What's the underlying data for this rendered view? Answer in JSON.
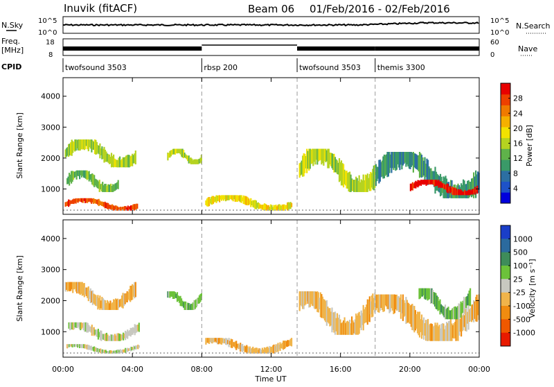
{
  "header": {
    "station": "Inuvik (fitACF)",
    "beam": "Beam 06",
    "date_range": "01/Feb/2016 - 02/Feb/2016"
  },
  "strip_panels": {
    "nsky": {
      "label": "N.Sky",
      "left_ticks": [
        "10^5",
        "10^0"
      ],
      "right_ticks": [
        "10^5",
        "10^0"
      ],
      "right_label": "N.Search"
    },
    "freq": {
      "label_line1": "Freq.",
      "label_line2": "[MHz]",
      "left_ticks": [
        "18",
        "8"
      ],
      "right_ticks": [
        "60",
        "0"
      ],
      "right_label": "Nave"
    },
    "cpid": {
      "label": "CPID",
      "segments": [
        {
          "name": "twofsound 3503",
          "start_h": 0.0,
          "end_h": 8.0
        },
        {
          "name": "rbsp 200",
          "start_h": 8.0,
          "end_h": 13.5
        },
        {
          "name": "twofsound 3503",
          "start_h": 13.5,
          "end_h": 18.0
        },
        {
          "name": "themis 3300",
          "start_h": 18.0,
          "end_h": 24.0
        }
      ]
    }
  },
  "time_axis": {
    "title": "Time UT",
    "ticks": [
      "00:00",
      "04:00",
      "08:00",
      "12:00",
      "16:00",
      "20:00",
      "00:00"
    ]
  },
  "chart_data": [
    {
      "type": "heatmap",
      "title": "Power",
      "ylabel": "Slant Range [km]",
      "xlabel": "Time UT",
      "xlim_hours": [
        0,
        24
      ],
      "ylim_km": [
        180,
        4600
      ],
      "y_ticks": [
        1000,
        2000,
        3000,
        4000
      ],
      "colorbar": {
        "label": "Power [dB]",
        "tick_labels": [
          "4",
          "8",
          "12",
          "16",
          "20",
          "24",
          "28"
        ],
        "colors": [
          "#0000dc",
          "#1e52c8",
          "#2c6fa2",
          "#3a9a68",
          "#5fb24a",
          "#b5d320",
          "#f2e200",
          "#f5b000",
          "#f07a00",
          "#ee4000",
          "#e80000"
        ]
      },
      "echo_regions": [
        {
          "t_start_h": 0.1,
          "t_end_h": 4.3,
          "range_km": [
            300,
            700
          ],
          "power_db": 28
        },
        {
          "t_start_h": 0.2,
          "t_end_h": 3.2,
          "range_km": [
            900,
            1600
          ],
          "power_db": 12
        },
        {
          "t_start_h": 0.1,
          "t_end_h": 4.2,
          "range_km": [
            1700,
            2600
          ],
          "power_db": 16
        },
        {
          "t_start_h": 6.0,
          "t_end_h": 8.0,
          "range_km": [
            1800,
            2300
          ],
          "power_db": 14
        },
        {
          "t_start_h": 8.2,
          "t_end_h": 13.2,
          "range_km": [
            300,
            800
          ],
          "power_db": 18
        },
        {
          "t_start_h": 13.6,
          "t_end_h": 18.0,
          "range_km": [
            900,
            2300
          ],
          "power_db": 14
        },
        {
          "t_start_h": 18.0,
          "t_end_h": 24.0,
          "range_km": [
            700,
            2200
          ],
          "power_db": 10
        },
        {
          "t_start_h": 20.0,
          "t_end_h": 23.9,
          "range_km": [
            800,
            1300
          ],
          "power_db": 30
        }
      ]
    },
    {
      "type": "heatmap",
      "title": "Velocity",
      "ylabel": "Slant Range [km]",
      "xlabel": "Time UT",
      "xlim_hours": [
        0,
        24
      ],
      "ylim_km": [
        180,
        4600
      ],
      "y_ticks": [
        1000,
        2000,
        3000,
        4000
      ],
      "colorbar": {
        "label": "Velocity [m s⁻¹]",
        "tick_labels": [
          "1000",
          "500",
          "100",
          "25",
          "-25",
          "-100",
          "-500",
          "-1000"
        ],
        "colors": [
          "#1a3ec8",
          "#2b6a9e",
          "#3e8c5a",
          "#6cc23a",
          "#c8c8c0",
          "#f0b44a",
          "#f08c10",
          "#f05800",
          "#e81a00"
        ]
      },
      "echo_regions": [
        {
          "t_start_h": 0.1,
          "t_end_h": 4.2,
          "range_km": [
            1700,
            2600
          ],
          "velocity": -300
        },
        {
          "t_start_h": 0.3,
          "t_end_h": 4.4,
          "range_km": [
            700,
            1300
          ],
          "velocity": 0
        },
        {
          "t_start_h": 0.2,
          "t_end_h": 4.4,
          "range_km": [
            300,
            600
          ],
          "velocity": -100
        },
        {
          "t_start_h": 6.0,
          "t_end_h": 8.0,
          "range_km": [
            1700,
            2300
          ],
          "velocity": 300
        },
        {
          "t_start_h": 8.2,
          "t_end_h": 13.2,
          "range_km": [
            300,
            800
          ],
          "velocity": -200
        },
        {
          "t_start_h": 13.6,
          "t_end_h": 18.0,
          "range_km": [
            900,
            2300
          ],
          "velocity": -300
        },
        {
          "t_start_h": 18.0,
          "t_end_h": 24.0,
          "range_km": [
            700,
            2200
          ],
          "velocity": -250
        },
        {
          "t_start_h": 20.5,
          "t_end_h": 23.5,
          "range_km": [
            1400,
            2400
          ],
          "velocity": 200
        }
      ]
    }
  ]
}
